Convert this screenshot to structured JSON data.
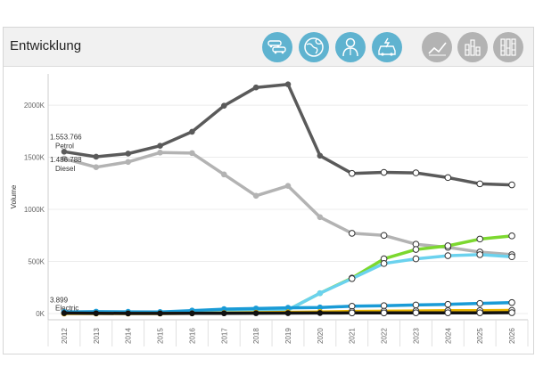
{
  "header": {
    "title": "Entwicklung",
    "buttons": [
      {
        "icon": "cars-icon",
        "style": "blue"
      },
      {
        "icon": "globe-icon",
        "style": "blue"
      },
      {
        "icon": "person-icon",
        "style": "blue"
      },
      {
        "icon": "car-charging-icon",
        "style": "blue"
      },
      {
        "icon": "line-chart-icon",
        "style": "grey"
      },
      {
        "icon": "stacked-bar-icon",
        "style": "grey"
      },
      {
        "icon": "full-bar-icon",
        "style": "grey"
      }
    ]
  },
  "chart_data": {
    "type": "line",
    "ylabel": "Volume",
    "xlabel": "",
    "x": [
      "2012",
      "2013",
      "2014",
      "2015",
      "2016",
      "2017",
      "2018",
      "2019",
      "2020",
      "2021",
      "2022",
      "2023",
      "2024",
      "2025",
      "2026"
    ],
    "ylim": [
      -60000,
      2300000
    ],
    "yticks": [
      0,
      500000,
      1000000,
      1500000,
      2000000
    ],
    "ytick_labels": [
      "0K",
      "500K",
      "1000K",
      "1500K",
      "2000K"
    ],
    "grid": "horizontal",
    "series": [
      {
        "name": "Petrol",
        "color": "#5a5a5a",
        "values": [
          1553766,
          1505000,
          1535000,
          1610000,
          1745000,
          1995000,
          2170000,
          2200000,
          1515000,
          1345000,
          1355000,
          1350000,
          1305000,
          1245000,
          1235000
        ],
        "forecast_from": 9
      },
      {
        "name": "Diesel",
        "color": "#b3b3b3",
        "values": [
          1486788,
          1405000,
          1455000,
          1545000,
          1540000,
          1335000,
          1130000,
          1225000,
          925000,
          770000,
          750000,
          665000,
          635000,
          590000,
          565000
        ],
        "forecast_from": 9
      },
      {
        "name": "",
        "color": "#7cd82f",
        "values": [
          3899,
          4000,
          4500,
          5000,
          7000,
          12000,
          20000,
          35000,
          195000,
          340000,
          525000,
          615000,
          650000,
          715000,
          745000
        ],
        "forecast_from": 9
      },
      {
        "name": "",
        "color": "#6bd2ee",
        "values": [
          3899,
          4000,
          4500,
          5000,
          7000,
          12000,
          20000,
          35000,
          195000,
          335000,
          480000,
          525000,
          555000,
          565000,
          545000
        ],
        "forecast_from": 9
      },
      {
        "name": "",
        "color": "#1a9bd6",
        "values": [
          15000,
          18000,
          16000,
          14000,
          28000,
          42000,
          48000,
          55000,
          58000,
          70000,
          75000,
          82000,
          88000,
          97000,
          105000
        ],
        "forecast_from": 9
      },
      {
        "name": "",
        "color": "#e8b400",
        "values": [
          0,
          0,
          0,
          0,
          2000,
          5000,
          8000,
          12000,
          15000,
          20000,
          22000,
          25000,
          27000,
          28000,
          30000
        ],
        "forecast_from": 9
      },
      {
        "name": "Electric",
        "color": "#111111",
        "values": [
          3899,
          2000,
          1000,
          1000,
          1500,
          2000,
          3000,
          4000,
          5000,
          6000,
          6000,
          7000,
          7000,
          7000,
          8000
        ],
        "forecast_from": 9
      }
    ],
    "annotations": [
      {
        "series": "Petrol",
        "value_text": "1.553.766",
        "name_text": "Petrol"
      },
      {
        "series": "Diesel",
        "value_text": "1.486.788",
        "name_text": "Diesel"
      },
      {
        "series": "Electric",
        "value_text": "3.899",
        "name_text": "Electric"
      }
    ]
  }
}
